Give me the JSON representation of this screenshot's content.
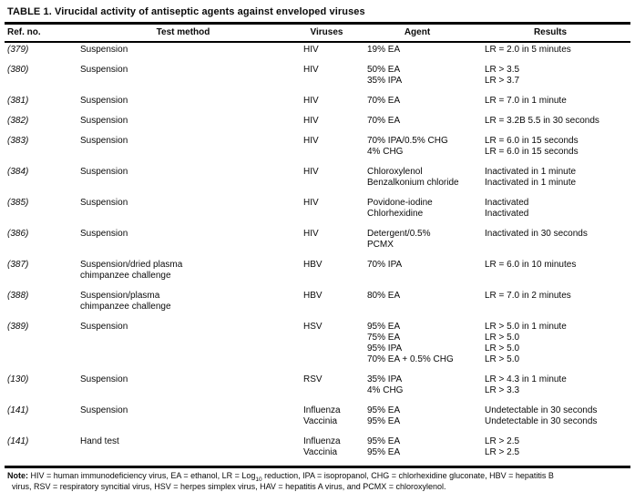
{
  "title": "TABLE 1. Virucidal activity of antiseptic agents against enveloped viruses",
  "colors": {
    "text": "#0a0a0a",
    "background": "#ffffff",
    "rule": "#000000"
  },
  "table": {
    "headers": [
      "Ref. no.",
      "Test method",
      "Viruses",
      "Agent",
      "Results"
    ],
    "rows": [
      {
        "ref": "(379)",
        "method": [
          "Suspension"
        ],
        "viruses": [
          "HIV"
        ],
        "agents": [
          "19% EA"
        ],
        "results": [
          "LR = 2.0 in 5 minutes"
        ]
      },
      {
        "ref": "(380)",
        "method": [
          "Suspension"
        ],
        "viruses": [
          "HIV"
        ],
        "agents": [
          "50% EA",
          "35% IPA"
        ],
        "results": [
          "LR > 3.5",
          "LR > 3.7"
        ]
      },
      {
        "ref": "(381)",
        "method": [
          "Suspension"
        ],
        "viruses": [
          "HIV"
        ],
        "agents": [
          "70% EA"
        ],
        "results": [
          "LR = 7.0 in 1 minute"
        ]
      },
      {
        "ref": "(382)",
        "method": [
          "Suspension"
        ],
        "viruses": [
          "HIV"
        ],
        "agents": [
          "70% EA"
        ],
        "results": [
          "LR = 3.2B 5.5 in 30 seconds"
        ]
      },
      {
        "ref": "(383)",
        "method": [
          "Suspension"
        ],
        "viruses": [
          "HIV"
        ],
        "agents": [
          "70% IPA/0.5% CHG",
          "4% CHG"
        ],
        "results": [
          "LR = 6.0 in 15 seconds",
          "LR = 6.0 in 15 seconds"
        ]
      },
      {
        "ref": "(384)",
        "method": [
          "Suspension"
        ],
        "viruses": [
          "HIV"
        ],
        "agents": [
          "Chloroxylenol",
          "Benzalkonium chloride"
        ],
        "results": [
          "Inactivated in 1 minute",
          "Inactivated in 1 minute"
        ]
      },
      {
        "ref": "(385)",
        "method": [
          "Suspension"
        ],
        "viruses": [
          "HIV"
        ],
        "agents": [
          "Povidone-iodine",
          "Chlorhexidine"
        ],
        "results": [
          "Inactivated",
          "Inactivated"
        ]
      },
      {
        "ref": "(386)",
        "method": [
          "Suspension"
        ],
        "viruses": [
          "HIV"
        ],
        "agents": [
          "Detergent/0.5%",
          "PCMX"
        ],
        "results": [
          "Inactivated in 30 seconds"
        ]
      },
      {
        "ref": "(387)",
        "method": [
          "Suspension/dried plasma",
          "chimpanzee challenge"
        ],
        "viruses": [
          "HBV"
        ],
        "agents": [
          "70% IPA"
        ],
        "results": [
          "LR = 6.0 in 10 minutes"
        ]
      },
      {
        "ref": "(388)",
        "method": [
          "Suspension/plasma",
          "chimpanzee challenge"
        ],
        "viruses": [
          "HBV"
        ],
        "agents": [
          "80% EA"
        ],
        "results": [
          "LR = 7.0 in 2 minutes"
        ]
      },
      {
        "ref": "(389)",
        "method": [
          "Suspension"
        ],
        "viruses": [
          "HSV"
        ],
        "agents": [
          "95% EA",
          "75% EA",
          "95% IPA",
          "70% EA + 0.5% CHG"
        ],
        "results": [
          "LR > 5.0 in 1 minute",
          "LR > 5.0",
          "LR > 5.0",
          "LR > 5.0"
        ]
      },
      {
        "ref": "(130)",
        "method": [
          "Suspension"
        ],
        "viruses": [
          "RSV"
        ],
        "agents": [
          "35% IPA",
          "4% CHG"
        ],
        "results": [
          "LR > 4.3 in 1 minute",
          "LR > 3.3"
        ]
      },
      {
        "ref": "(141)",
        "method": [
          "Suspension"
        ],
        "viruses": [
          "Influenza",
          "Vaccinia"
        ],
        "agents": [
          "95% EA",
          "95% EA"
        ],
        "results": [
          "Undetectable in 30 seconds",
          "Undetectable in 30 seconds"
        ]
      },
      {
        "ref": "(141)",
        "method": [
          "Hand test"
        ],
        "viruses": [
          "Influenza",
          "Vaccinia"
        ],
        "agents": [
          "95% EA",
          "95% EA"
        ],
        "results": [
          "LR > 2.5",
          "LR > 2.5"
        ]
      }
    ]
  },
  "note": {
    "label": "Note:",
    "line1_pre": " HIV = human immunodeficiency virus, EA = ethanol, LR = Log",
    "line1_sub": "10",
    "line1_post": " reduction, IPA = isopropanol, CHG = chlorhexidine gluconate, HBV = hepatitis B",
    "line2": "virus, RSV = respiratory syncitial virus, HSV = herpes simplex virus, HAV = hepatitis A virus, and PCMX = chloroxylenol."
  }
}
